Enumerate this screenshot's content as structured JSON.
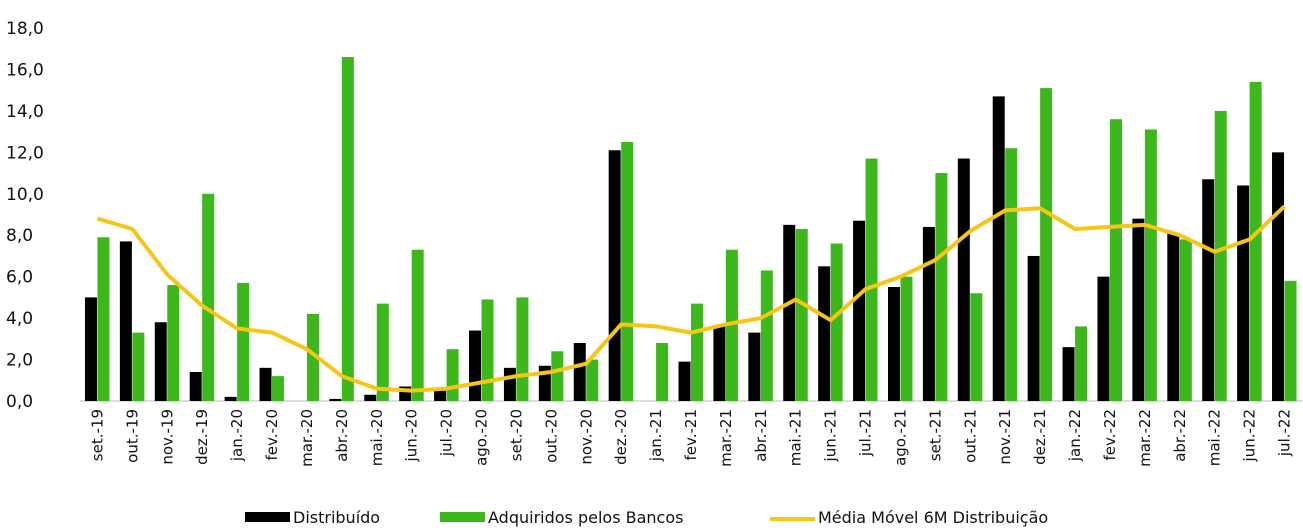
{
  "chart_data": {
    "type": "bar-line",
    "categories": [
      "set.-19",
      "out.-19",
      "nov.-19",
      "dez.-19",
      "jan.-20",
      "fev.-20",
      "mar.-20",
      "abr.-20",
      "mai.-20",
      "jun.-20",
      "jul.-20",
      "ago.-20",
      "set.-20",
      "out.-20",
      "nov.-20",
      "dez.-20",
      "jan.-21",
      "fev.-21",
      "mar.-21",
      "abr.-21",
      "mai.-21",
      "jun.-21",
      "jul.-21",
      "ago.-21",
      "set.-21",
      "out.-21",
      "nov.-21",
      "dez.-21",
      "jan.-22",
      "fev.-22",
      "mar.-22",
      "abr.-22",
      "mai.-22",
      "jun.-22",
      "jul.-22"
    ],
    "series": [
      {
        "name": "Distribuído",
        "color": "#000000",
        "kind": "bar",
        "values": [
          5.0,
          7.7,
          3.8,
          1.4,
          0.2,
          1.6,
          0.0,
          0.1,
          0.3,
          0.7,
          0.5,
          3.4,
          1.6,
          1.7,
          2.8,
          12.1,
          0.0,
          1.9,
          3.6,
          3.3,
          8.5,
          6.5,
          8.7,
          5.5,
          8.4,
          11.7,
          14.7,
          7.0,
          2.6,
          6.0,
          8.8,
          8.1,
          10.7,
          10.4,
          12.0
        ]
      },
      {
        "name": "Adquiridos pelos Bancos",
        "color": "#3cb71c",
        "kind": "bar",
        "values": [
          7.9,
          3.3,
          5.6,
          10.0,
          5.7,
          1.2,
          4.2,
          16.6,
          4.7,
          7.3,
          2.5,
          4.9,
          5.0,
          2.4,
          2.0,
          12.5,
          2.8,
          4.7,
          7.3,
          6.3,
          8.3,
          7.6,
          11.7,
          6.0,
          11.0,
          5.2,
          12.2,
          15.1,
          3.6,
          13.6,
          13.1,
          7.8,
          14.0,
          15.4,
          5.8
        ]
      },
      {
        "name": "Média Móvel 6M Distribuição",
        "color": "#f5c518",
        "kind": "line",
        "values": [
          8.8,
          8.3,
          6.1,
          4.6,
          3.5,
          3.3,
          2.5,
          1.2,
          0.6,
          0.5,
          0.6,
          0.9,
          1.2,
          1.4,
          1.8,
          3.7,
          3.6,
          3.3,
          3.7,
          4.0,
          4.9,
          3.9,
          5.4,
          6.0,
          6.8,
          8.2,
          9.2,
          9.3,
          8.3,
          8.4,
          8.5,
          8.0,
          7.2,
          7.8,
          9.4
        ]
      }
    ],
    "ylim": [
      0,
      18
    ],
    "yticks": [
      {
        "value": 0,
        "label": "0,0"
      },
      {
        "value": 2,
        "label": "2,0"
      },
      {
        "value": 4,
        "label": "4,0"
      },
      {
        "value": 6,
        "label": "6,0"
      },
      {
        "value": 8,
        "label": "8,0"
      },
      {
        "value": 10,
        "label": "10,0"
      },
      {
        "value": 12,
        "label": "12,0"
      },
      {
        "value": 14,
        "label": "14,0"
      },
      {
        "value": 16,
        "label": "16,0"
      },
      {
        "value": 18,
        "label": "18,0"
      }
    ]
  }
}
